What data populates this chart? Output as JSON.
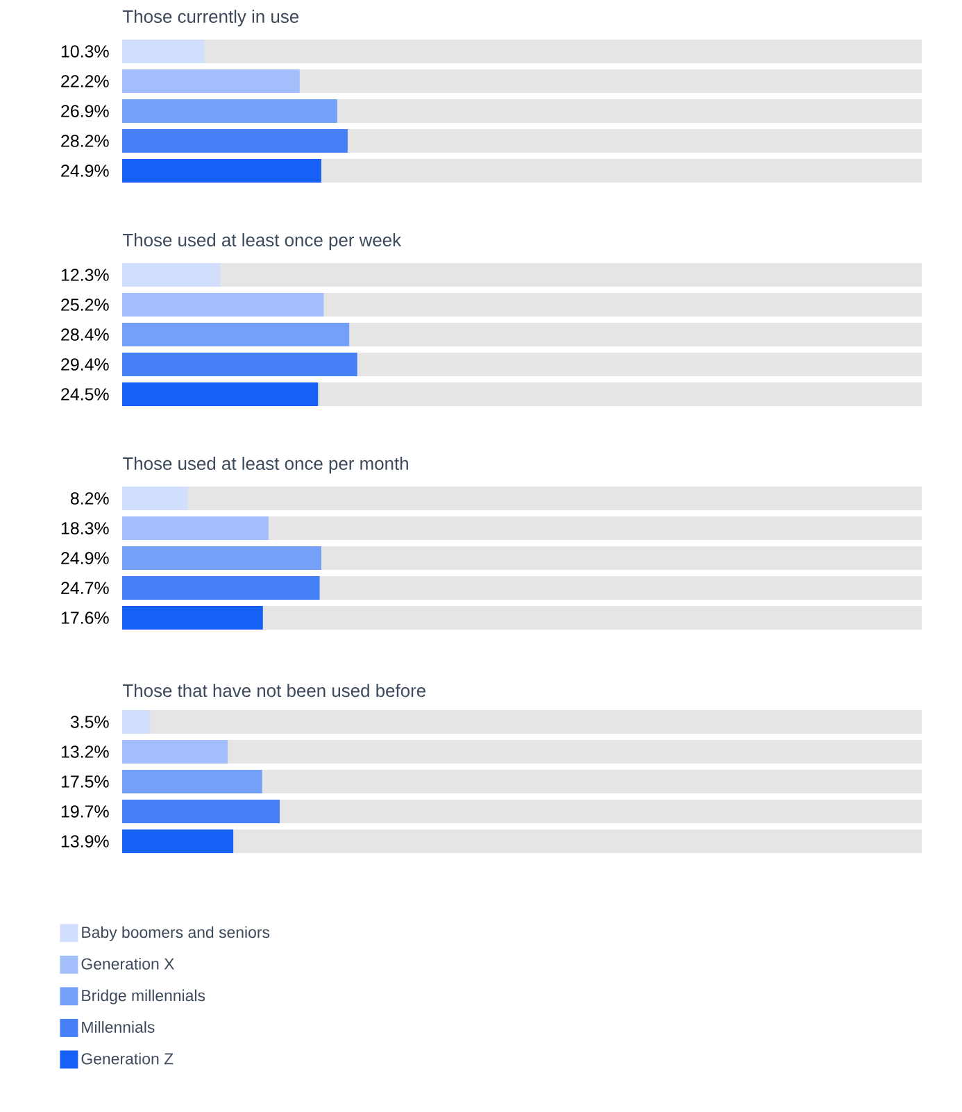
{
  "chart_data": [
    {
      "type": "bar",
      "orientation": "horizontal",
      "title": "Those currently in use",
      "categories": [
        null
      ],
      "xlim": [
        0,
        100
      ],
      "series": [
        {
          "color": "#d1defc",
          "values": [
            10.3
          ],
          "value_labels": [
            "10.3%"
          ]
        },
        {
          "color": "#a3bffb",
          "values": [
            22.2
          ],
          "value_labels": [
            "22.2%"
          ]
        },
        {
          "color": "#74a0f9",
          "values": [
            26.9
          ],
          "value_labels": [
            "26.9%"
          ]
        },
        {
          "color": "#4680f7",
          "values": [
            28.2
          ],
          "value_labels": [
            "28.2%"
          ]
        },
        {
          "color": "#1660f5",
          "values": [
            24.9
          ],
          "value_labels": [
            "24.9%"
          ]
        }
      ]
    },
    {
      "type": "bar",
      "orientation": "horizontal",
      "title": "Those used at least once per week",
      "categories": [
        null
      ],
      "xlim": [
        0,
        100
      ],
      "series": [
        {
          "color": "#d1defc",
          "values": [
            12.3
          ],
          "value_labels": [
            "12.3%"
          ]
        },
        {
          "color": "#a3bffb",
          "values": [
            25.2
          ],
          "value_labels": [
            "25.2%"
          ]
        },
        {
          "color": "#74a0f9",
          "values": [
            28.4
          ],
          "value_labels": [
            "28.4%"
          ]
        },
        {
          "color": "#4680f7",
          "values": [
            29.4
          ],
          "value_labels": [
            "29.4%"
          ]
        },
        {
          "color": "#1660f5",
          "values": [
            24.5
          ],
          "value_labels": [
            "24.5%"
          ]
        }
      ]
    },
    {
      "type": "bar",
      "orientation": "horizontal",
      "title": "Those used at least once per month",
      "categories": [
        null
      ],
      "xlim": [
        0,
        100
      ],
      "series": [
        {
          "color": "#d1defc",
          "values": [
            8.2
          ],
          "value_labels": [
            "8.2%"
          ]
        },
        {
          "color": "#a3bffb",
          "values": [
            18.3
          ],
          "value_labels": [
            "18.3%"
          ]
        },
        {
          "color": "#74a0f9",
          "values": [
            24.9
          ],
          "value_labels": [
            "24.9%"
          ]
        },
        {
          "color": "#4680f7",
          "values": [
            24.7
          ],
          "value_labels": [
            "24.7%"
          ]
        },
        {
          "color": "#1660f5",
          "values": [
            17.6
          ],
          "value_labels": [
            "17.6%"
          ]
        }
      ]
    },
    {
      "type": "bar",
      "orientation": "horizontal",
      "title": "Those that have not been used before",
      "categories": [
        null
      ],
      "xlim": [
        0,
        100
      ],
      "legend": "bottom",
      "series": [
        {
          "name": "Baby boomers and seniors",
          "color": "#d1defc",
          "values": [
            3.5
          ],
          "value_labels": [
            "3.5%"
          ]
        },
        {
          "name": "Generation X",
          "color": "#a3bffb",
          "values": [
            13.2
          ],
          "value_labels": [
            "13.2%"
          ]
        },
        {
          "name": "Bridge millennials",
          "color": "#74a0f9",
          "values": [
            17.5
          ],
          "value_labels": [
            "17.5%"
          ]
        },
        {
          "name": "Millennials",
          "color": "#4680f7",
          "values": [
            19.7
          ],
          "value_labels": [
            "19.7%"
          ]
        },
        {
          "name": "Generation Z",
          "color": "#1660f5",
          "values": [
            13.9
          ],
          "value_labels": [
            "13.9%"
          ]
        }
      ]
    }
  ]
}
